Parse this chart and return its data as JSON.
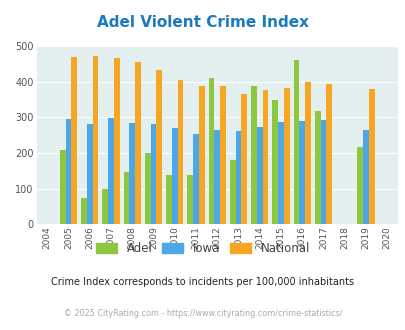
{
  "title": "Adel Violent Crime Index",
  "title_color": "#1a7abf",
  "years": [
    2005,
    2006,
    2007,
    2008,
    2009,
    2010,
    2011,
    2012,
    2013,
    2014,
    2015,
    2016,
    2017,
    2018,
    2019
  ],
  "adel": [
    210,
    75,
    100,
    148,
    200,
    140,
    140,
    410,
    180,
    388,
    350,
    460,
    318,
    0,
    216
  ],
  "iowa": [
    295,
    283,
    299,
    284,
    281,
    271,
    255,
    264,
    261,
    274,
    287,
    291,
    293,
    0,
    266
  ],
  "national": [
    470,
    472,
    467,
    455,
    432,
    406,
    389,
    389,
    366,
    378,
    384,
    399,
    394,
    0,
    380
  ],
  "adel_color": "#8dc63f",
  "iowa_color": "#4da6e8",
  "national_color": "#f5a623",
  "bg_color": "#e4f0f0",
  "ylim": [
    0,
    500
  ],
  "yticks": [
    0,
    100,
    200,
    300,
    400,
    500
  ],
  "xlabel_ticks": [
    2004,
    2005,
    2006,
    2007,
    2008,
    2009,
    2010,
    2011,
    2012,
    2013,
    2014,
    2015,
    2016,
    2017,
    2018,
    2019,
    2020
  ],
  "subtitle": "Crime Index corresponds to incidents per 100,000 inhabitants",
  "subtitle_color": "#222222",
  "copyright": "© 2025 CityRating.com - https://www.cityrating.com/crime-statistics/",
  "copyright_color": "#aaaaaa",
  "bar_width": 0.27,
  "legend_labels": [
    "Adel",
    "Iowa",
    "National"
  ]
}
